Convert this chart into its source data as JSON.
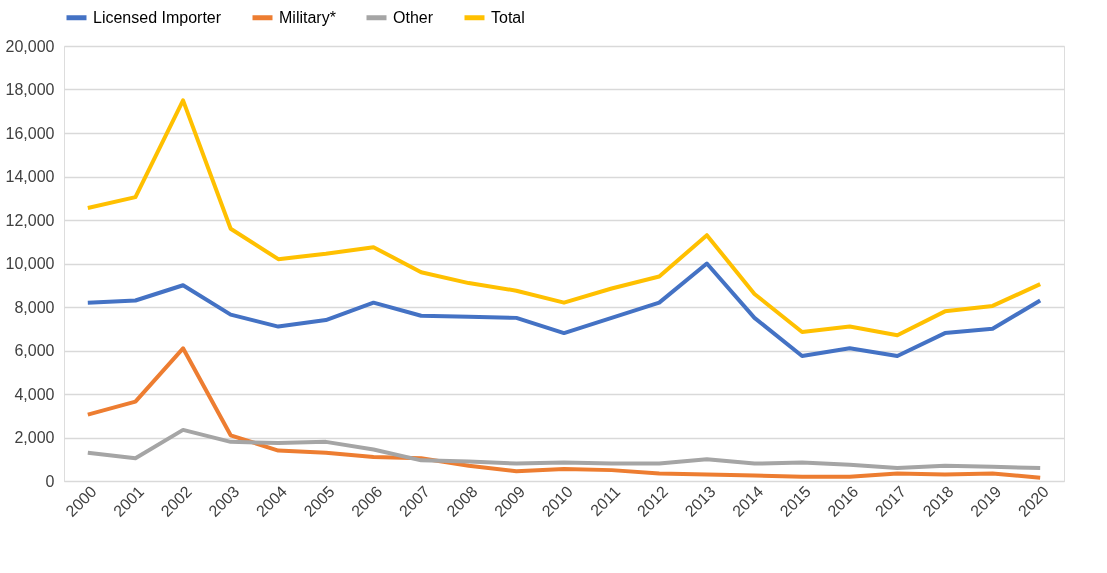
{
  "chart_data": {
    "type": "line",
    "categories": [
      "2000",
      "2001",
      "2002",
      "2003",
      "2004",
      "2005",
      "2006",
      "2007",
      "2008",
      "2009",
      "2010",
      "2011",
      "2012",
      "2013",
      "2014",
      "2015",
      "2016",
      "2017",
      "2018",
      "2019",
      "2020"
    ],
    "series": [
      {
        "name": "Licensed Importer",
        "color": "#4472c4",
        "values": [
          8200,
          8300,
          9000,
          7650,
          7100,
          7400,
          8200,
          7600,
          7550,
          7500,
          6800,
          7500,
          8200,
          10000,
          7500,
          5750,
          6100,
          5750,
          6800,
          7000,
          8300
        ]
      },
      {
        "name": "Military*",
        "color": "#ed7d31",
        "values": [
          3050,
          3650,
          6100,
          2100,
          1400,
          1300,
          1100,
          1050,
          700,
          450,
          550,
          500,
          350,
          300,
          250,
          200,
          200,
          350,
          300,
          350,
          150
        ]
      },
      {
        "name": "Other",
        "color": "#a5a5a5",
        "values": [
          1300,
          1050,
          2350,
          1800,
          1750,
          1800,
          1450,
          950,
          900,
          800,
          850,
          800,
          800,
          1000,
          800,
          850,
          750,
          600,
          700,
          650,
          600
        ]
      },
      {
        "name": "Total",
        "color": "#ffc000",
        "values": [
          12550,
          13050,
          17500,
          11600,
          10200,
          10450,
          10750,
          9600,
          9100,
          8750,
          8200,
          8850,
          9400,
          11300,
          8600,
          6850,
          7100,
          6700,
          7800,
          8050,
          9050
        ]
      }
    ],
    "ylim": [
      0,
      20000
    ],
    "yticks": [
      {
        "value": 0,
        "label": "0"
      },
      {
        "value": 2000,
        "label": "2,000"
      },
      {
        "value": 4000,
        "label": "4,000"
      },
      {
        "value": 6000,
        "label": "6,000"
      },
      {
        "value": 8000,
        "label": "8,000"
      },
      {
        "value": 10000,
        "label": "10,000"
      },
      {
        "value": 12000,
        "label": "12,000"
      },
      {
        "value": 14000,
        "label": "14,000"
      },
      {
        "value": 16000,
        "label": "16,000"
      },
      {
        "value": 18000,
        "label": "18,000"
      },
      {
        "value": 20000,
        "label": "20,000"
      }
    ],
    "grid": "y",
    "legend": "top",
    "marker": "none",
    "line_style": "solid"
  }
}
